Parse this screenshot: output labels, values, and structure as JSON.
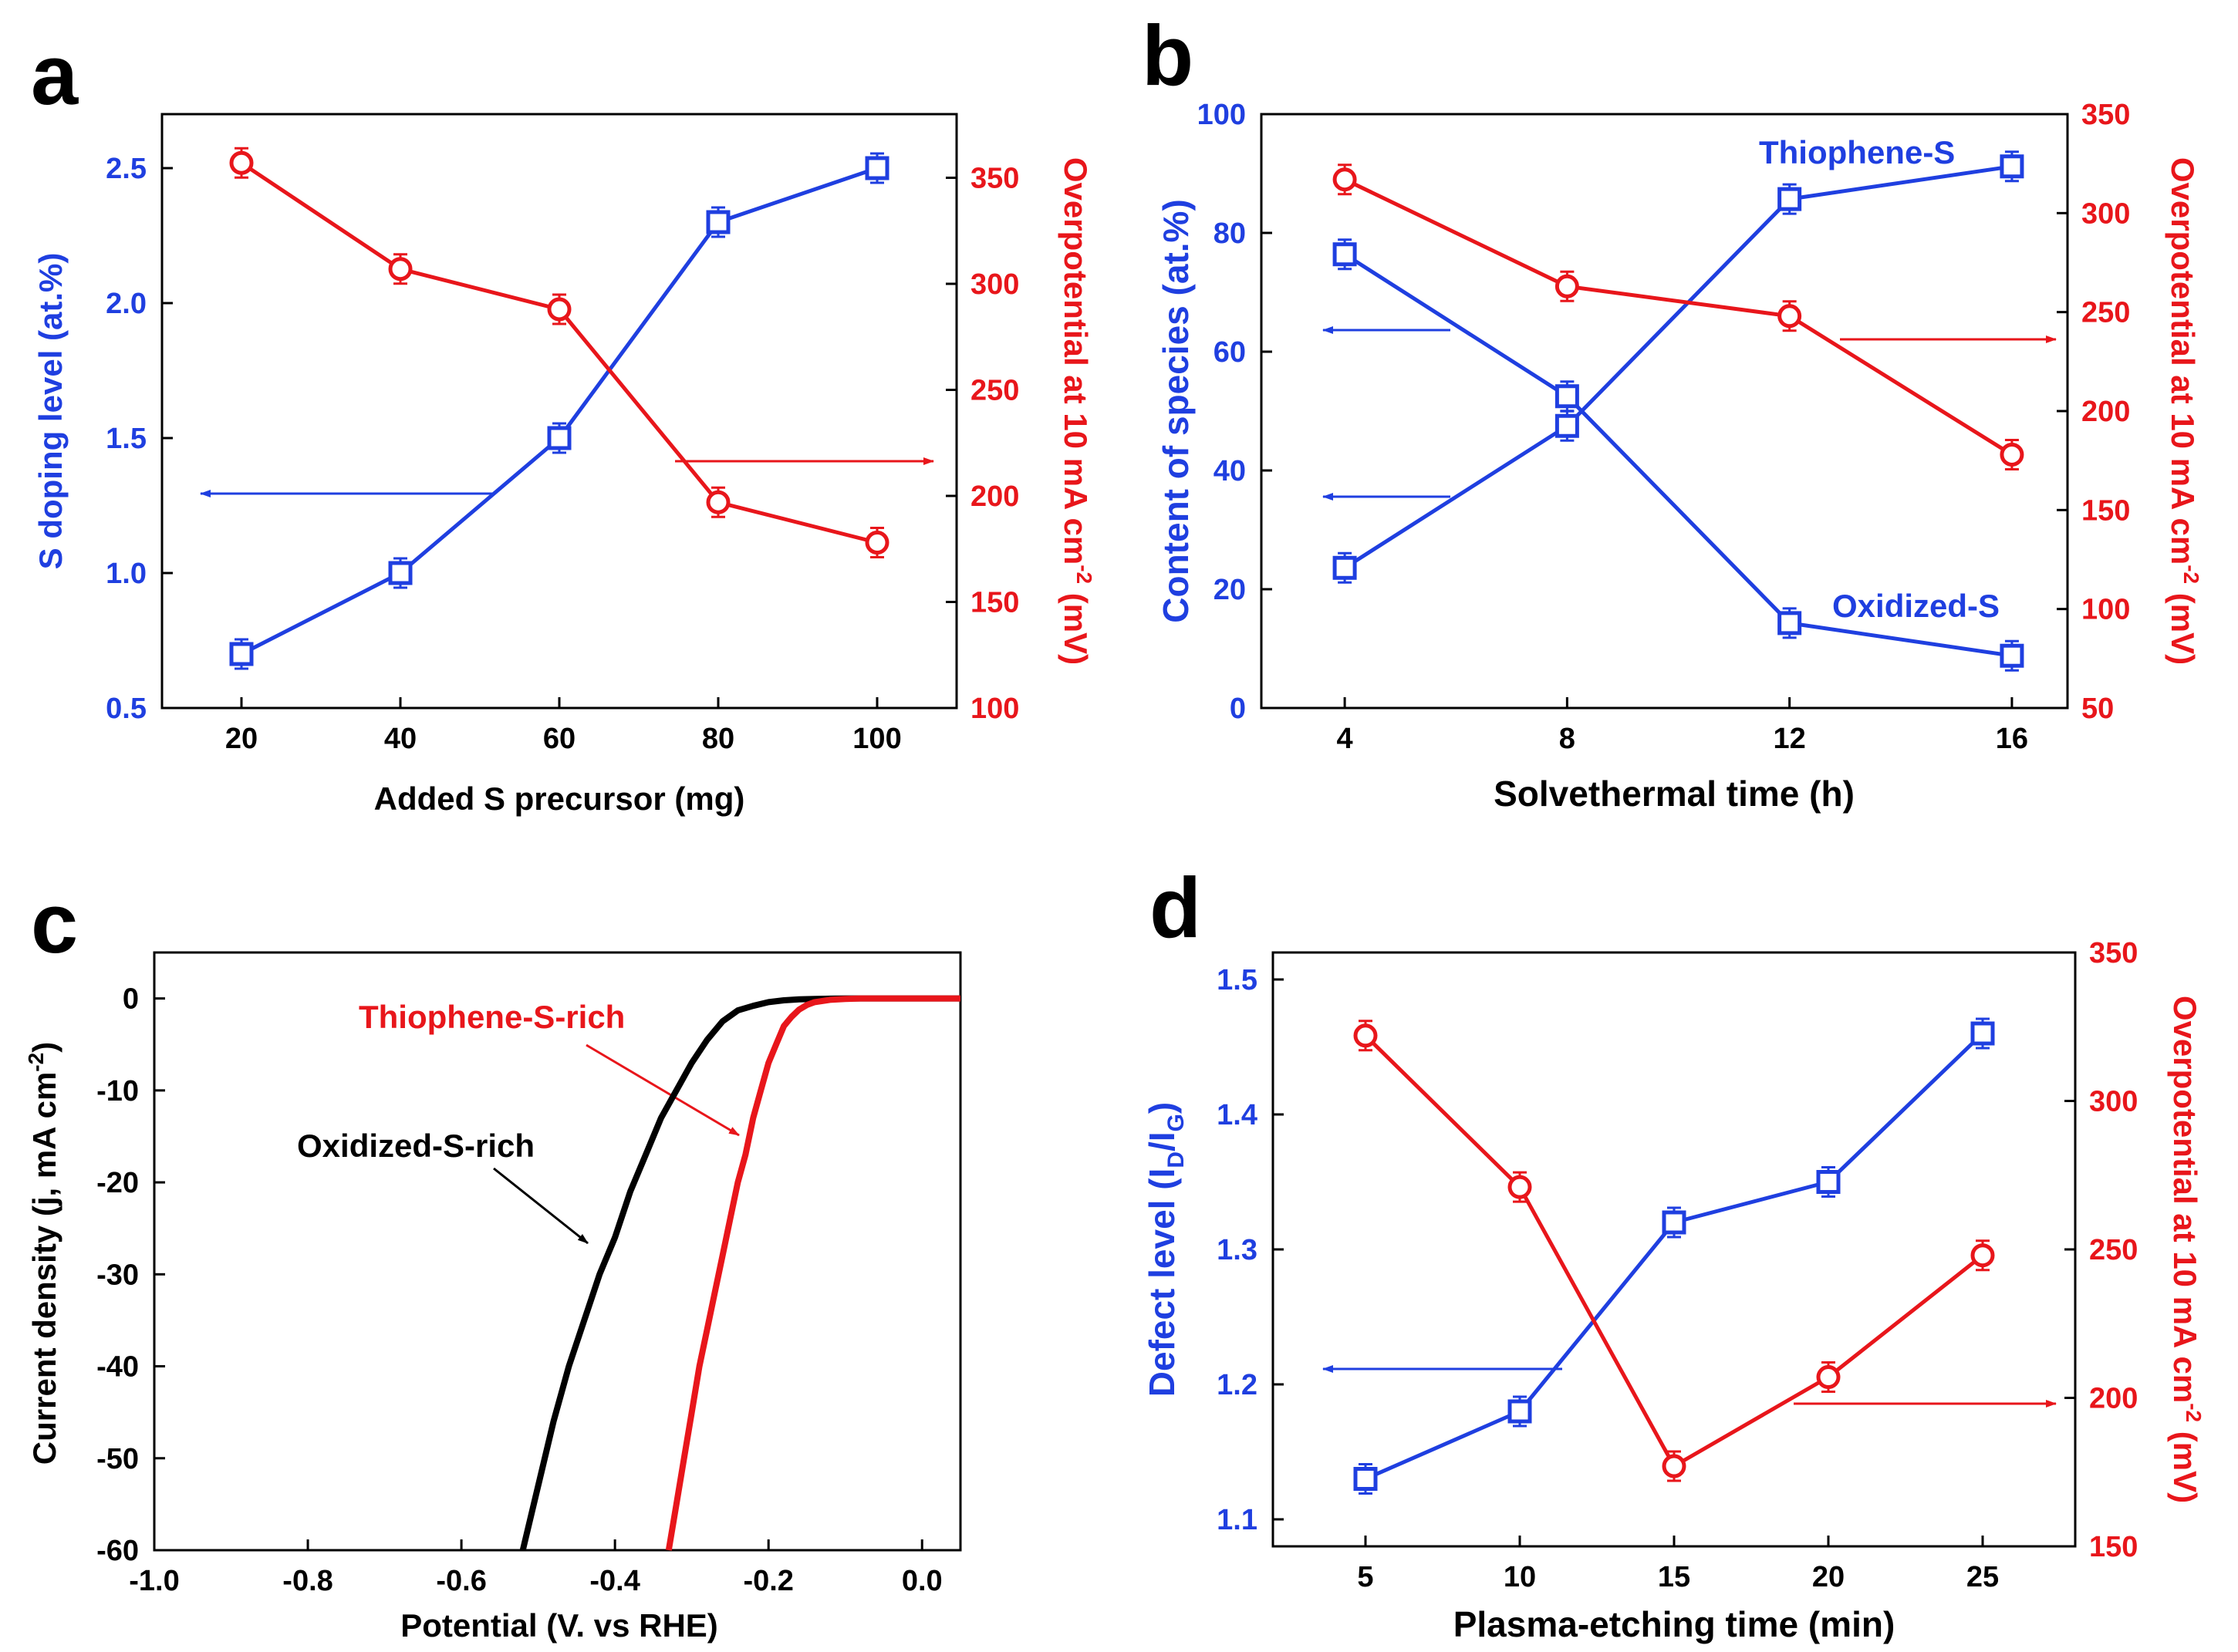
{
  "colors": {
    "blue": "#1f3fe0",
    "red": "#e8161b",
    "black": "#000000"
  },
  "chart_data": [
    {
      "panel": "a",
      "type": "line",
      "xlabel": "Added S precursor (mg)",
      "ylabel_left": "S doping level (at.%)",
      "ylabel_right": "Overpotential at 10 mA cm-2 (mV)",
      "xlim": [
        10,
        110
      ],
      "ylim_left": [
        0.5,
        2.7
      ],
      "ylim_right": [
        100,
        380
      ],
      "xticks": [
        20,
        40,
        60,
        80,
        100
      ],
      "yticks_left": [
        0.5,
        1.0,
        1.5,
        2.0,
        2.5
      ],
      "yticks_right": [
        100,
        150,
        200,
        250,
        300,
        350
      ],
      "series": [
        {
          "axis": "left",
          "color": "blue",
          "marker": "square",
          "x": [
            20,
            40,
            60,
            80,
            100
          ],
          "y": [
            0.7,
            1.0,
            1.5,
            2.3,
            2.5
          ]
        },
        {
          "axis": "right",
          "color": "red",
          "marker": "circle",
          "x": [
            20,
            40,
            60,
            80,
            100
          ],
          "y": [
            357,
            307,
            288,
            197,
            178
          ]
        }
      ]
    },
    {
      "panel": "b",
      "type": "line",
      "xlabel": "Solvethermal time (h)",
      "ylabel_left": "Content of species (at.%)",
      "ylabel_right": "Overpotential at 10 mA cm-2 (mV)",
      "xlim": [
        2.5,
        17.0
      ],
      "ylim_left": [
        0,
        100
      ],
      "ylim_right": [
        50,
        350
      ],
      "xticks": [
        4,
        8,
        12,
        16
      ],
      "yticks_left": [
        0,
        20,
        40,
        60,
        80,
        100
      ],
      "yticks_right": [
        50,
        100,
        150,
        200,
        250,
        300,
        350
      ],
      "series": [
        {
          "name": "Thiophene-S",
          "axis": "left",
          "color": "blue",
          "marker": "square",
          "x": [
            4,
            8,
            12,
            16
          ],
          "y": [
            23.6,
            47.5,
            85.7,
            91.2
          ]
        },
        {
          "name": "Oxidized-S",
          "axis": "left",
          "color": "blue",
          "marker": "square",
          "x": [
            4,
            8,
            12,
            16
          ],
          "y": [
            76.4,
            52.5,
            14.3,
            8.8
          ]
        },
        {
          "axis": "right",
          "color": "red",
          "marker": "circle",
          "x": [
            4,
            8,
            12,
            16
          ],
          "y": [
            317,
            263,
            248,
            178
          ]
        }
      ]
    },
    {
      "panel": "c",
      "type": "line",
      "xlabel": "Potential (V. vs RHE)",
      "ylabel": "Current density (j, mA cm-2)",
      "xlim": [
        -1.0,
        0.05
      ],
      "ylim": [
        -60,
        5
      ],
      "xticks": [
        -1.0,
        -0.8,
        -0.6,
        -0.4,
        -0.2,
        0.0
      ],
      "yticks": [
        0,
        -10,
        -20,
        -30,
        -40,
        -50,
        -60
      ],
      "series": [
        {
          "name": "Oxidized-S-rich",
          "color": "black",
          "x": [
            -0.52,
            -0.5,
            -0.48,
            -0.46,
            -0.44,
            -0.42,
            -0.4,
            -0.38,
            -0.36,
            -0.34,
            -0.32,
            -0.3,
            -0.28,
            -0.26,
            -0.24,
            -0.22,
            -0.2,
            -0.18,
            -0.16,
            -0.14,
            -0.12,
            -0.1,
            -0.08,
            -0.06,
            -0.04,
            -0.02,
            0.0,
            0.05
          ],
          "y": [
            -60,
            -53,
            -46,
            -40,
            -35,
            -30,
            -26,
            -21,
            -17,
            -13,
            -10,
            -7,
            -4.5,
            -2.5,
            -1.3,
            -0.8,
            -0.4,
            -0.2,
            -0.1,
            -0.05,
            -0.02,
            0,
            0,
            0,
            0,
            0,
            0,
            0
          ]
        },
        {
          "name": "Thiophene-S-rich",
          "color": "red",
          "x": [
            -0.33,
            -0.32,
            -0.31,
            -0.3,
            -0.29,
            -0.28,
            -0.27,
            -0.26,
            -0.25,
            -0.24,
            -0.23,
            -0.22,
            -0.21,
            -0.2,
            -0.19,
            -0.18,
            -0.17,
            -0.16,
            -0.15,
            -0.14,
            -0.12,
            -0.1,
            -0.08,
            -0.06,
            -0.04,
            -0.02,
            0.0,
            0.05
          ],
          "y": [
            -60,
            -55,
            -50,
            -45,
            -40,
            -36,
            -32,
            -28,
            -24,
            -20,
            -17,
            -13,
            -10,
            -7,
            -5,
            -3,
            -2,
            -1.2,
            -0.7,
            -0.4,
            -0.15,
            -0.05,
            0,
            0,
            0,
            0,
            0,
            0
          ]
        }
      ]
    },
    {
      "panel": "d",
      "type": "line",
      "xlabel": "Plasma-etching time (min)",
      "ylabel_left": "Defect level (ID/IG)",
      "ylabel_right": "Overpotential at 10 mA cm-2 (mV)",
      "xlim": [
        2,
        28
      ],
      "ylim_left": [
        1.08,
        1.52
      ],
      "ylim_right": [
        150,
        350
      ],
      "xticks": [
        5,
        10,
        15,
        20,
        25
      ],
      "yticks_left": [
        1.1,
        1.2,
        1.3,
        1.4,
        1.5
      ],
      "yticks_right": [
        150,
        200,
        250,
        300,
        350
      ],
      "series": [
        {
          "axis": "left",
          "color": "blue",
          "marker": "square",
          "x": [
            5,
            10,
            15,
            20,
            25
          ],
          "y": [
            1.13,
            1.18,
            1.32,
            1.35,
            1.46
          ]
        },
        {
          "axis": "right",
          "color": "red",
          "marker": "circle",
          "x": [
            5,
            10,
            15,
            20,
            25
          ],
          "y": [
            322,
            271,
            177,
            207,
            248
          ]
        }
      ]
    }
  ],
  "text": {
    "a": {
      "letter": "a",
      "xticks": [
        "20",
        "40",
        "60",
        "80",
        "100"
      ],
      "yl": [
        "0.5",
        "1.0",
        "1.5",
        "2.0",
        "2.5"
      ],
      "yr": [
        "100",
        "150",
        "200",
        "250",
        "300",
        "350"
      ],
      "xlabel": "Added S precursor (mg)",
      "ylabel_left": "S doping level (at.%)",
      "ylabel_right_main": "Overpotential at 10 mA cm",
      "ylabel_right_sup": "-2",
      "ylabel_right_end": " (mV)"
    },
    "b": {
      "letter": "b",
      "xticks": [
        "4",
        "8",
        "12",
        "16"
      ],
      "yl": [
        "0",
        "20",
        "40",
        "60",
        "80",
        "100"
      ],
      "yr": [
        "50",
        "100",
        "150",
        "200",
        "250",
        "300",
        "350"
      ],
      "xlabel": "Solvethermal time (h)",
      "ylabel_left": "Content of species (at.%)",
      "ylabel_right_main": "Overpotential at 10 mA cm",
      "ylabel_right_sup": "-2",
      "ylabel_right_end": " (mV)",
      "label_thiophene": "Thiophene-S",
      "label_oxidized": "Oxidized-S"
    },
    "c": {
      "letter": "c",
      "xticks": [
        "-1.0",
        "-0.8",
        "-0.6",
        "-0.4",
        "-0.2",
        "0.0"
      ],
      "yl": [
        "0",
        "-10",
        "-20",
        "-30",
        "-40",
        "-50",
        "-60"
      ],
      "xlabel": "Potential (V. vs RHE)",
      "ylabel_main": "Current density (j, mA cm",
      "ylabel_sup": "-2",
      "ylabel_end": ")",
      "label_thiophene": "Thiophene-S-rich",
      "label_oxidized": "Oxidized-S-rich"
    },
    "d": {
      "letter": "d",
      "xticks": [
        "5",
        "10",
        "15",
        "20",
        "25"
      ],
      "yl": [
        "1.1",
        "1.2",
        "1.3",
        "1.4",
        "1.5"
      ],
      "yr": [
        "150",
        "200",
        "250",
        "300",
        "350"
      ],
      "xlabel": "Plasma-etching time (min)",
      "ylabel_left_main": "Defect level (I",
      "ylabel_left_sub1": "D",
      "ylabel_left_mid": "/I",
      "ylabel_left_sub2": "G",
      "ylabel_left_end": ")",
      "ylabel_right_main": "Overpotential at 10 mA cm",
      "ylabel_right_sup": "-2",
      "ylabel_right_end": " (mV)"
    }
  }
}
